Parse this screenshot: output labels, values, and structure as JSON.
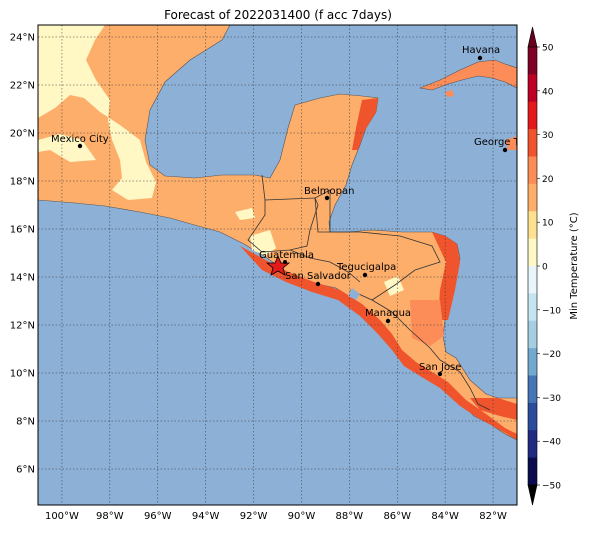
{
  "title": "Forecast of 2022031400 (f acc 7days)",
  "colorbar": {
    "label": "Min Temperature (°C)",
    "ticks": [
      50,
      40,
      30,
      20,
      10,
      0,
      -10,
      -20,
      -30,
      -40,
      -50
    ],
    "colors": [
      "#800026",
      "#bd0026",
      "#e31a1c",
      "#f0542c",
      "#fc8d59",
      "#fdae6b",
      "#fee090",
      "#fff7c4",
      "#e8f6fb",
      "#c6e4f0",
      "#a6cee3",
      "#74a9cf",
      "#4575b4",
      "#2b4c9c",
      "#1f2a80",
      "#0a0a50"
    ],
    "top_extend_color": "#67001f",
    "bottom_extend_color": "#000000"
  },
  "axes": {
    "lon_range": [
      -101,
      -81
    ],
    "lat_range": [
      4.5,
      24.5
    ],
    "lon_labels": [
      "100°W",
      "98°W",
      "96°W",
      "94°W",
      "92°W",
      "90°W",
      "88°W",
      "86°W",
      "84°W",
      "82°W"
    ],
    "lat_labels": [
      "6°N",
      "8°N",
      "10°N",
      "12°N",
      "14°N",
      "16°N",
      "18°N",
      "20°N",
      "22°N",
      "24°N"
    ]
  },
  "colors": {
    "ocean": "#8db0d6",
    "warm": "#fdae6b",
    "mild": "#fff7c4",
    "hot": "#f0542c",
    "mid": "#fc8d59",
    "border": "#333333"
  },
  "cities": [
    {
      "name": "Havana"
    },
    {
      "name": "Mexico City"
    },
    {
      "name": "George Tov"
    },
    {
      "name": "Belmopan"
    },
    {
      "name": "Guatemala"
    },
    {
      "name": "Tegucigalpa"
    },
    {
      "name": "San Salvador"
    },
    {
      "name": "Managua"
    },
    {
      "name": "San Jose"
    }
  ]
}
